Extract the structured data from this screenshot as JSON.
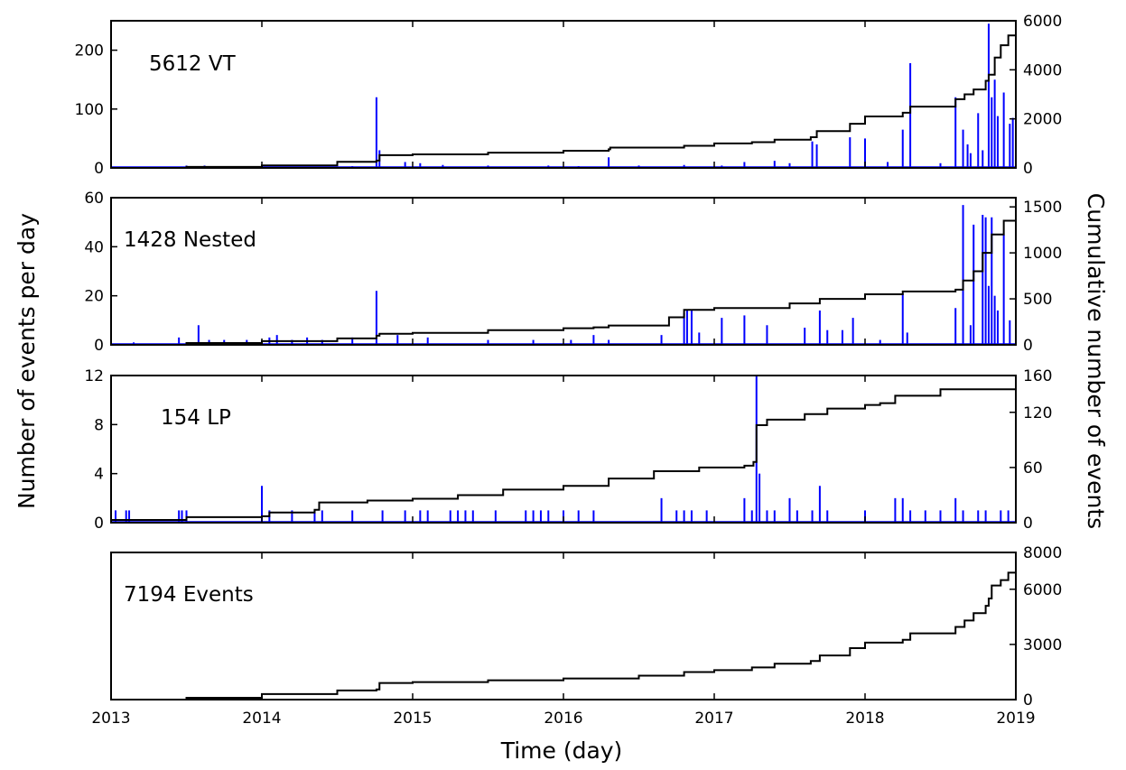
{
  "figure": {
    "ylabel_left": "Number of events per day",
    "ylabel_right": "Cumulative number of events",
    "xlabel": "Time (day)",
    "colors": {
      "bars": "#0000ff",
      "cumulative": "#000000",
      "axes": "#000000"
    }
  },
  "chart_data": [
    {
      "type": "bar",
      "label": "5612 VT",
      "total": 5612,
      "xlim": [
        2013,
        2019
      ],
      "xticks": [
        "2013",
        "2014",
        "2015",
        "2016",
        "2017",
        "2018",
        "2019"
      ],
      "ylim_left": [
        0,
        250
      ],
      "yticks_left": [
        "0",
        "100",
        "200"
      ],
      "ylim_right": [
        0,
        6000
      ],
      "yticks_right": [
        "0",
        "2000",
        "4000",
        "6000"
      ],
      "daily_counts": [
        [
          2013.5,
          4
        ],
        [
          2013.62,
          4
        ],
        [
          2014.6,
          3
        ],
        [
          2014.76,
          120
        ],
        [
          2014.78,
          30
        ],
        [
          2014.95,
          10
        ],
        [
          2015.05,
          8
        ],
        [
          2015.2,
          5
        ],
        [
          2015.5,
          4
        ],
        [
          2015.9,
          4
        ],
        [
          2016.1,
          3
        ],
        [
          2016.3,
          18
        ],
        [
          2016.5,
          4
        ],
        [
          2016.8,
          5
        ],
        [
          2017.05,
          4
        ],
        [
          2017.2,
          10
        ],
        [
          2017.4,
          12
        ],
        [
          2017.5,
          8
        ],
        [
          2017.65,
          45
        ],
        [
          2017.68,
          40
        ],
        [
          2017.9,
          52
        ],
        [
          2018.0,
          50
        ],
        [
          2018.15,
          10
        ],
        [
          2018.25,
          65
        ],
        [
          2018.3,
          178
        ],
        [
          2018.5,
          8
        ],
        [
          2018.6,
          120
        ],
        [
          2018.65,
          65
        ],
        [
          2018.68,
          40
        ],
        [
          2018.7,
          25
        ],
        [
          2018.75,
          93
        ],
        [
          2018.78,
          30
        ],
        [
          2018.82,
          245
        ],
        [
          2018.84,
          120
        ],
        [
          2018.86,
          150
        ],
        [
          2018.88,
          88
        ],
        [
          2018.92,
          128
        ],
        [
          2018.96,
          75
        ],
        [
          2018.98,
          85
        ],
        [
          2019.0,
          80
        ]
      ],
      "cumulative": [
        [
          2013,
          0
        ],
        [
          2013.5,
          40
        ],
        [
          2014.0,
          100
        ],
        [
          2014.5,
          250
        ],
        [
          2014.76,
          300
        ],
        [
          2014.78,
          520
        ],
        [
          2015.0,
          550
        ],
        [
          2015.5,
          620
        ],
        [
          2016.0,
          700
        ],
        [
          2016.3,
          760
        ],
        [
          2016.31,
          830
        ],
        [
          2016.8,
          900
        ],
        [
          2017.0,
          1000
        ],
        [
          2017.25,
          1050
        ],
        [
          2017.4,
          1150
        ],
        [
          2017.64,
          1250
        ],
        [
          2017.68,
          1500
        ],
        [
          2017.9,
          1800
        ],
        [
          2018.0,
          2100
        ],
        [
          2018.25,
          2250
        ],
        [
          2018.3,
          2500
        ],
        [
          2018.6,
          2800
        ],
        [
          2018.66,
          3000
        ],
        [
          2018.72,
          3200
        ],
        [
          2018.8,
          3550
        ],
        [
          2018.82,
          3800
        ],
        [
          2018.86,
          4500
        ],
        [
          2018.9,
          5000
        ],
        [
          2018.95,
          5400
        ],
        [
          2019.0,
          5612
        ]
      ]
    },
    {
      "type": "bar",
      "label": "1428 Nested",
      "total": 1428,
      "xlim": [
        2013,
        2019
      ],
      "xticks": [
        "2013",
        "2014",
        "2015",
        "2016",
        "2017",
        "2018",
        "2019"
      ],
      "ylim_left": [
        0,
        60
      ],
      "yticks_left": [
        "0",
        "20",
        "40",
        "60"
      ],
      "ylim_right": [
        0,
        1600
      ],
      "yticks_right": [
        "0",
        "500",
        "1000",
        "1500"
      ],
      "daily_counts": [
        [
          2013.15,
          1
        ],
        [
          2013.45,
          3
        ],
        [
          2013.58,
          8
        ],
        [
          2013.65,
          2
        ],
        [
          2013.75,
          2
        ],
        [
          2013.9,
          2
        ],
        [
          2014.05,
          3
        ],
        [
          2014.1,
          4
        ],
        [
          2014.2,
          2
        ],
        [
          2014.3,
          3
        ],
        [
          2014.4,
          2
        ],
        [
          2014.6,
          3
        ],
        [
          2014.76,
          22
        ],
        [
          2014.9,
          4
        ],
        [
          2015.1,
          3
        ],
        [
          2015.5,
          2
        ],
        [
          2015.8,
          2
        ],
        [
          2016.05,
          2
        ],
        [
          2016.2,
          4
        ],
        [
          2016.3,
          2
        ],
        [
          2016.65,
          4
        ],
        [
          2016.8,
          13
        ],
        [
          2016.82,
          14
        ],
        [
          2016.85,
          14
        ],
        [
          2016.9,
          5
        ],
        [
          2017.05,
          11
        ],
        [
          2017.2,
          12
        ],
        [
          2017.35,
          8
        ],
        [
          2017.6,
          7
        ],
        [
          2017.7,
          14
        ],
        [
          2017.75,
          6
        ],
        [
          2017.85,
          6
        ],
        [
          2017.92,
          11
        ],
        [
          2018.1,
          2
        ],
        [
          2018.25,
          21
        ],
        [
          2018.28,
          5
        ],
        [
          2018.6,
          15
        ],
        [
          2018.65,
          57
        ],
        [
          2018.7,
          8
        ],
        [
          2018.72,
          49
        ],
        [
          2018.78,
          53
        ],
        [
          2018.8,
          52
        ],
        [
          2018.82,
          24
        ],
        [
          2018.84,
          52
        ],
        [
          2018.86,
          20
        ],
        [
          2018.88,
          14
        ],
        [
          2018.92,
          45
        ],
        [
          2018.96,
          10
        ]
      ],
      "cumulative": [
        [
          2013,
          0
        ],
        [
          2013.5,
          20
        ],
        [
          2014.0,
          40
        ],
        [
          2014.5,
          70
        ],
        [
          2014.76,
          100
        ],
        [
          2014.78,
          120
        ],
        [
          2015.0,
          130
        ],
        [
          2015.5,
          160
        ],
        [
          2016.0,
          180
        ],
        [
          2016.2,
          190
        ],
        [
          2016.3,
          210
        ],
        [
          2016.7,
          300
        ],
        [
          2016.8,
          380
        ],
        [
          2017.0,
          400
        ],
        [
          2017.5,
          450
        ],
        [
          2017.7,
          500
        ],
        [
          2018.0,
          550
        ],
        [
          2018.25,
          580
        ],
        [
          2018.6,
          600
        ],
        [
          2018.65,
          700
        ],
        [
          2018.72,
          800
        ],
        [
          2018.78,
          1000
        ],
        [
          2018.84,
          1200
        ],
        [
          2018.92,
          1350
        ],
        [
          2019.0,
          1428
        ]
      ]
    },
    {
      "type": "bar",
      "label": "154 LP",
      "total": 154,
      "xlim": [
        2013,
        2019
      ],
      "xticks": [
        "2013",
        "2014",
        "2015",
        "2016",
        "2017",
        "2018",
        "2019"
      ],
      "ylim_left": [
        0,
        12
      ],
      "yticks_left": [
        "0",
        "4",
        "8",
        "12"
      ],
      "ylim_right": [
        0,
        160
      ],
      "yticks_right": [
        "0",
        "60",
        "120",
        "160"
      ],
      "daily_counts": [
        [
          2013.03,
          1
        ],
        [
          2013.1,
          1
        ],
        [
          2013.12,
          1
        ],
        [
          2013.45,
          1
        ],
        [
          2013.47,
          1
        ],
        [
          2013.5,
          1
        ],
        [
          2014.0,
          3
        ],
        [
          2014.05,
          1
        ],
        [
          2014.2,
          1
        ],
        [
          2014.35,
          1
        ],
        [
          2014.4,
          1
        ],
        [
          2014.6,
          1
        ],
        [
          2014.8,
          1
        ],
        [
          2014.95,
          1
        ],
        [
          2015.05,
          1
        ],
        [
          2015.1,
          1
        ],
        [
          2015.25,
          1
        ],
        [
          2015.3,
          1
        ],
        [
          2015.35,
          1
        ],
        [
          2015.4,
          1
        ],
        [
          2015.55,
          1
        ],
        [
          2015.75,
          1
        ],
        [
          2015.8,
          1
        ],
        [
          2015.85,
          1
        ],
        [
          2015.9,
          1
        ],
        [
          2016.0,
          1
        ],
        [
          2016.1,
          1
        ],
        [
          2016.2,
          1
        ],
        [
          2016.65,
          2
        ],
        [
          2016.75,
          1
        ],
        [
          2016.8,
          1
        ],
        [
          2016.85,
          1
        ],
        [
          2016.95,
          1
        ],
        [
          2017.2,
          2
        ],
        [
          2017.25,
          1
        ],
        [
          2017.28,
          12
        ],
        [
          2017.3,
          4
        ],
        [
          2017.35,
          1
        ],
        [
          2017.4,
          1
        ],
        [
          2017.5,
          2
        ],
        [
          2017.55,
          1
        ],
        [
          2017.65,
          1
        ],
        [
          2017.7,
          3
        ],
        [
          2017.75,
          1
        ],
        [
          2018.0,
          1
        ],
        [
          2018.2,
          2
        ],
        [
          2018.25,
          2
        ],
        [
          2018.3,
          1
        ],
        [
          2018.4,
          1
        ],
        [
          2018.5,
          1
        ],
        [
          2018.6,
          2
        ],
        [
          2018.65,
          1
        ],
        [
          2018.75,
          1
        ],
        [
          2018.8,
          1
        ],
        [
          2018.9,
          1
        ],
        [
          2018.95,
          1
        ]
      ],
      "cumulative": [
        [
          2013,
          3
        ],
        [
          2013.5,
          6
        ],
        [
          2014.0,
          7
        ],
        [
          2014.05,
          11
        ],
        [
          2014.35,
          14
        ],
        [
          2014.38,
          22
        ],
        [
          2014.7,
          24
        ],
        [
          2015.0,
          26
        ],
        [
          2015.3,
          30
        ],
        [
          2015.6,
          36
        ],
        [
          2016.0,
          40
        ],
        [
          2016.3,
          48
        ],
        [
          2016.6,
          56
        ],
        [
          2016.9,
          60
        ],
        [
          2017.2,
          62
        ],
        [
          2017.26,
          66
        ],
        [
          2017.28,
          106
        ],
        [
          2017.35,
          112
        ],
        [
          2017.6,
          118
        ],
        [
          2017.75,
          124
        ],
        [
          2018.0,
          128
        ],
        [
          2018.1,
          130
        ],
        [
          2018.2,
          138
        ],
        [
          2018.5,
          145
        ],
        [
          2019.0,
          154
        ]
      ]
    },
    {
      "type": "line",
      "label": "7194 Events",
      "total": 7194,
      "xlim": [
        2013,
        2019
      ],
      "xticks": [
        "2013",
        "2014",
        "2015",
        "2016",
        "2017",
        "2018",
        "2019"
      ],
      "ylim_right": [
        0,
        8000
      ],
      "yticks_right": [
        "0",
        "3000",
        "6000",
        "8000"
      ],
      "cumulative": [
        [
          2013,
          0
        ],
        [
          2013.5,
          100
        ],
        [
          2014.0,
          300
        ],
        [
          2014.5,
          500
        ],
        [
          2014.76,
          550
        ],
        [
          2014.78,
          900
        ],
        [
          2015.0,
          950
        ],
        [
          2015.5,
          1050
        ],
        [
          2016.0,
          1150
        ],
        [
          2016.5,
          1300
        ],
        [
          2016.8,
          1500
        ],
        [
          2017.0,
          1600
        ],
        [
          2017.25,
          1750
        ],
        [
          2017.4,
          1950
        ],
        [
          2017.64,
          2100
        ],
        [
          2017.7,
          2400
        ],
        [
          2017.9,
          2800
        ],
        [
          2018.0,
          3100
        ],
        [
          2018.25,
          3250
        ],
        [
          2018.3,
          3600
        ],
        [
          2018.6,
          3950
        ],
        [
          2018.66,
          4300
        ],
        [
          2018.72,
          4700
        ],
        [
          2018.8,
          5100
        ],
        [
          2018.82,
          5500
        ],
        [
          2018.84,
          6200
        ],
        [
          2018.9,
          6500
        ],
        [
          2018.95,
          6900
        ],
        [
          2019.0,
          7194
        ]
      ]
    }
  ]
}
